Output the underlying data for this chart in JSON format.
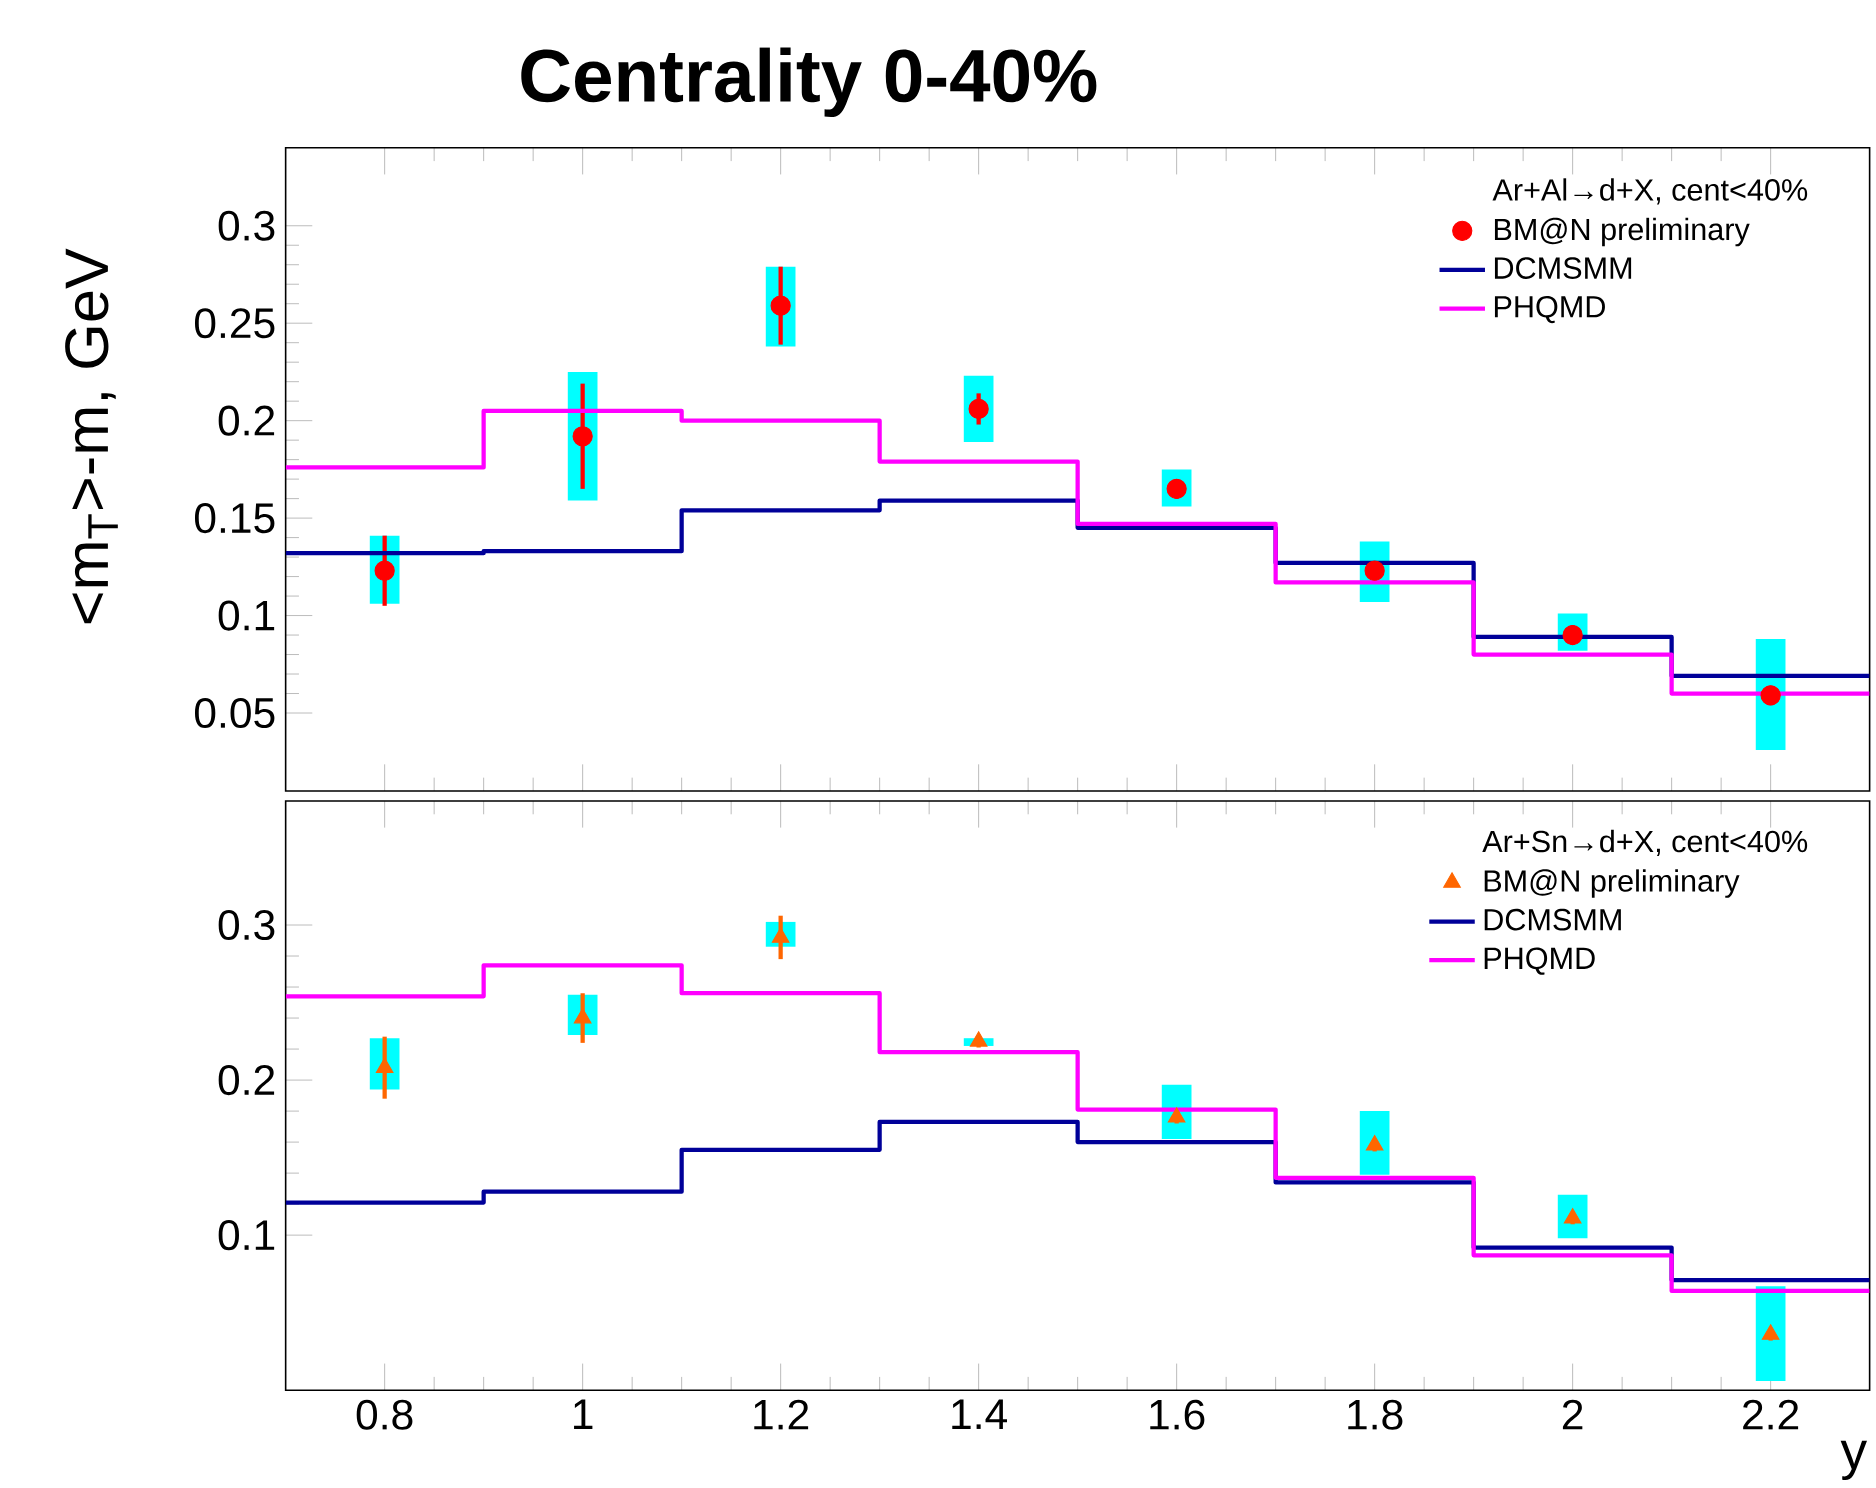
{
  "chart_data": [
    {
      "type": "scatter",
      "title": "Centrality 0-40%",
      "ylabel": "<m$_{T}$>-m, GeV",
      "legend_title": "Ar+Al→d+X, cent<40%",
      "legend": "top right",
      "tick_labels": "y",
      "xlim": [
        0.7,
        2.3
      ],
      "ylim": [
        0.01,
        0.34
      ],
      "xticks": [
        0.8,
        1,
        1.2,
        1.4,
        1.6,
        1.8,
        2,
        2.2
      ],
      "yticks": [
        0.05,
        0.1,
        0.15,
        0.2,
        0.25,
        0.3
      ],
      "series": [
        {
          "name": "BM@N preliminary",
          "color": "#ff0000",
          "marker": "circle",
          "x": [
            0.8,
            1.0,
            1.2,
            1.4,
            1.6,
            1.8,
            2.0,
            2.2
          ],
          "values": [
            0.123,
            0.192,
            0.259,
            0.206,
            0.165,
            0.123,
            0.09,
            0.059
          ],
          "errors": [
            0.018,
            0.027,
            0.02,
            0.008,
            0.005,
            0.005,
            0.005,
            0.005
          ]
        },
        {
          "type": "step",
          "name": "DCMSMM",
          "color": "#000099",
          "x": [
            0.7,
            0.9,
            1.1,
            1.3,
            1.5,
            1.7,
            1.9,
            2.1,
            2.3
          ],
          "values": [
            0.132,
            0.133,
            0.154,
            0.159,
            0.145,
            0.127,
            0.089,
            0.069,
            0.069
          ]
        },
        {
          "type": "step",
          "name": "PHQMD",
          "color": "#ff00ff",
          "x": [
            0.7,
            0.9,
            1.1,
            1.3,
            1.5,
            1.7,
            1.9,
            2.1,
            2.3
          ],
          "values": [
            0.176,
            0.205,
            0.2,
            0.179,
            0.147,
            0.117,
            0.08,
            0.06,
            0.06
          ]
        },
        {
          "type": "bar",
          "color": "#00ffff",
          "x": [
            0.8,
            1.0,
            1.2,
            1.4,
            1.6,
            1.8,
            2.0,
            2.2
          ],
          "base": [
            0.106,
            0.159,
            0.238,
            0.189,
            0.156,
            0.107,
            0.082,
            0.031
          ],
          "values": [
            0.035,
            0.066,
            0.041,
            0.034,
            0.019,
            0.031,
            0.019,
            0.057
          ]
        }
      ]
    },
    {
      "type": "scatter",
      "xlabel": "y",
      "legend_title": "Ar+Sn→d+X, cent<40%",
      "legend": "top right",
      "xlim": [
        0.7,
        2.3
      ],
      "ylim": [
        0,
        0.38
      ],
      "xticks": [
        0.8,
        1,
        1.2,
        1.4,
        1.6,
        1.8,
        2,
        2.2
      ],
      "yticks": [
        0.1,
        0.2,
        0.3
      ],
      "series": [
        {
          "name": "BM@N preliminary",
          "color": "#ff6600",
          "marker": "triangle",
          "x": [
            0.8,
            1.0,
            1.2,
            1.4,
            1.6,
            1.8,
            2.0,
            2.2
          ],
          "values": [
            0.208,
            0.24,
            0.292,
            0.225,
            0.176,
            0.158,
            0.111,
            0.036
          ],
          "errors": [
            0.02,
            0.016,
            0.014,
            0.004,
            0.004,
            0.004,
            0.004,
            0.004
          ]
        },
        {
          "type": "step",
          "name": "DCMSMM",
          "color": "#000099",
          "x": [
            0.7,
            0.9,
            1.1,
            1.3,
            1.5,
            1.7,
            1.9,
            2.1,
            2.3
          ],
          "values": [
            0.121,
            0.128,
            0.155,
            0.173,
            0.16,
            0.134,
            0.092,
            0.071,
            0.071
          ]
        },
        {
          "type": "step",
          "name": "PHQMD",
          "color": "#ff00ff",
          "x": [
            0.7,
            0.9,
            1.1,
            1.3,
            1.5,
            1.7,
            1.9,
            2.1,
            2.3
          ],
          "values": [
            0.254,
            0.274,
            0.256,
            0.218,
            0.181,
            0.137,
            0.087,
            0.064,
            0.064
          ]
        },
        {
          "type": "bar",
          "color": "#00ffff",
          "x": [
            0.8,
            1.0,
            1.2,
            1.4,
            1.6,
            1.8,
            2.0,
            2.2
          ],
          "base": [
            0.194,
            0.229,
            0.286,
            0.222,
            0.162,
            0.139,
            0.098,
            0.006
          ],
          "values": [
            0.033,
            0.026,
            0.016,
            0.005,
            0.035,
            0.041,
            0.028,
            0.061
          ]
        }
      ]
    }
  ]
}
